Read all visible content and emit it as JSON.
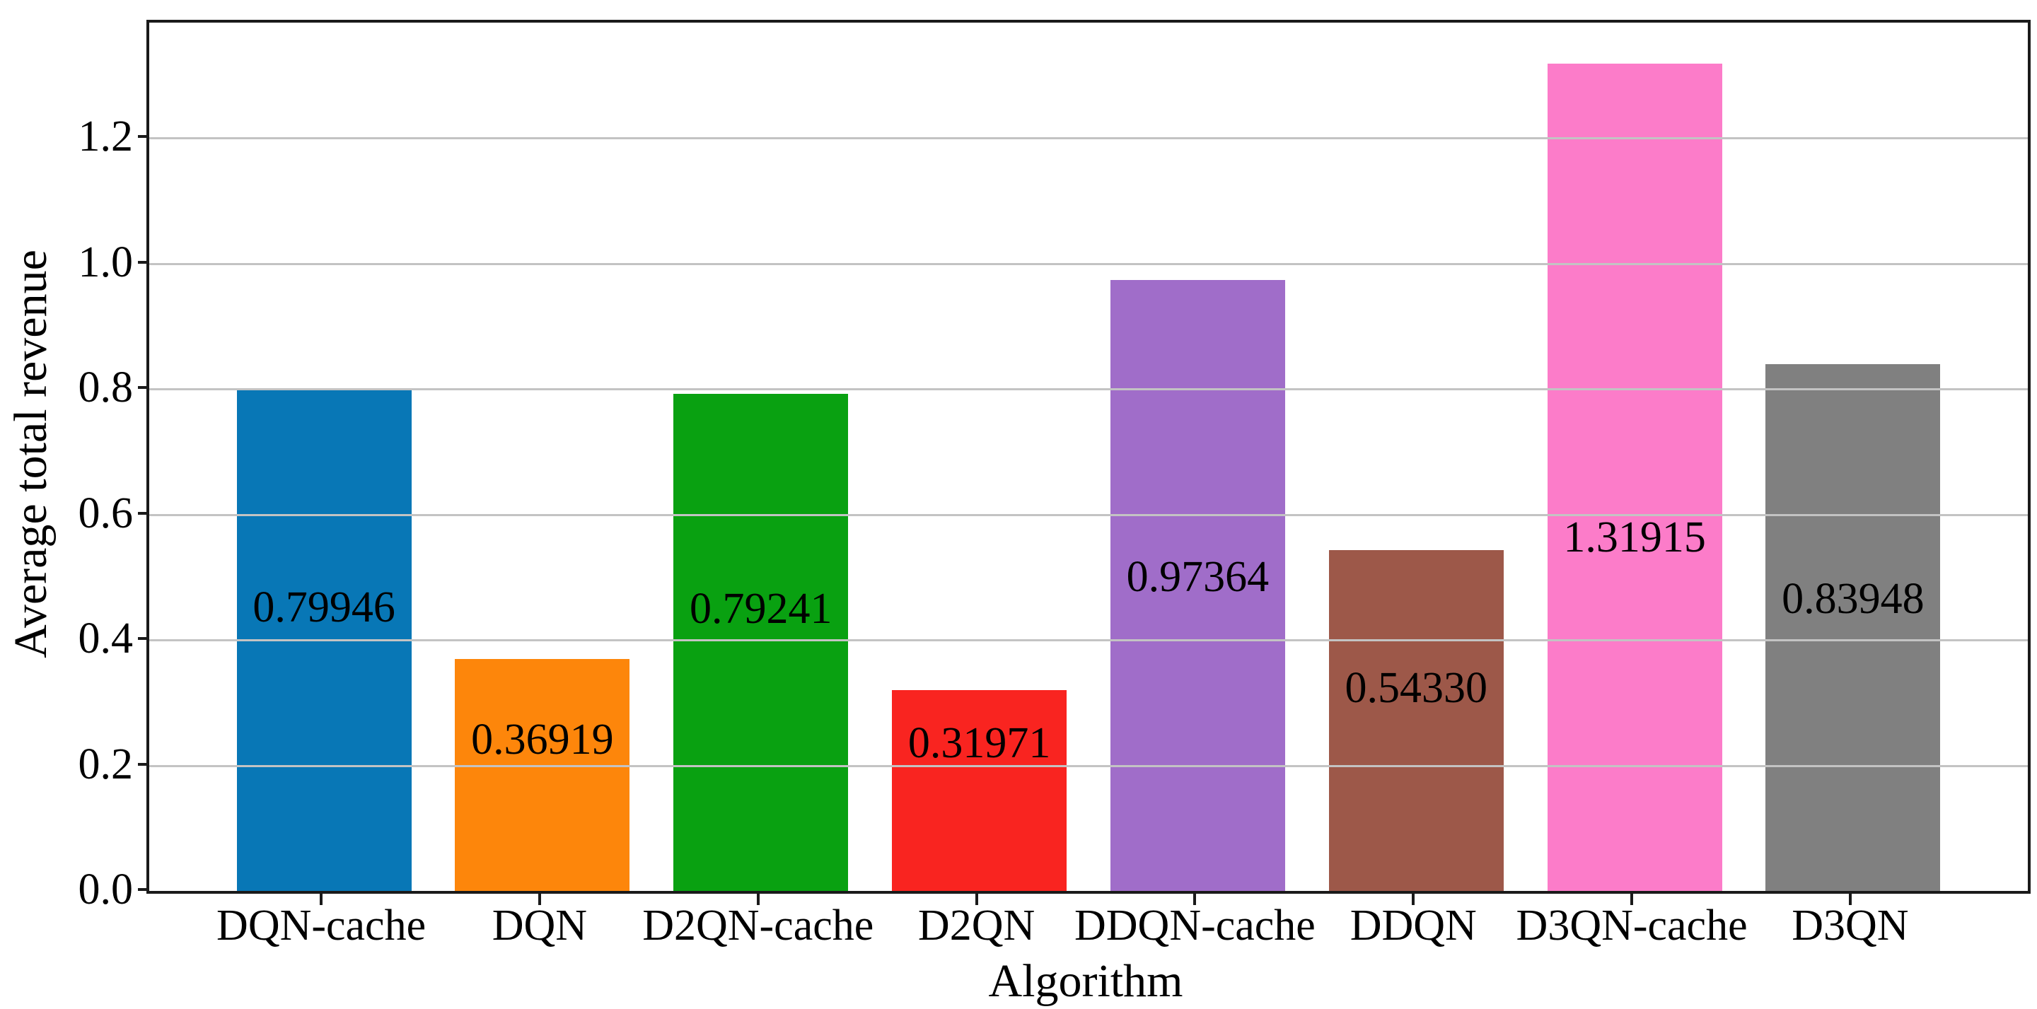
{
  "chart_data": {
    "type": "bar",
    "title": "",
    "xlabel": "Algorithm",
    "ylabel": "Average total revenue",
    "categories": [
      "DQN-cache",
      "DQN",
      "D2QN-cache",
      "D2QN",
      "DDQN-cache",
      "DDQN",
      "D3QN-cache",
      "D3QN"
    ],
    "values": [
      0.79946,
      0.36919,
      0.79241,
      0.31971,
      0.97364,
      0.5433,
      1.31915,
      0.83948
    ],
    "value_labels": [
      "0.79946",
      "0.36919",
      "0.79241",
      "0.31971",
      "0.97364",
      "0.54330",
      "1.31915",
      "0.83948"
    ],
    "bar_colors": [
      "#0877b6",
      "#fd860b",
      "#09a111",
      "#f92420",
      "#a06dc9",
      "#9d5849",
      "#fc7cc9",
      "#808080"
    ],
    "value_label_y_positions": [
      0.452,
      0.241,
      0.45,
      0.235,
      0.5,
      0.324,
      0.564,
      0.466
    ],
    "ylim": [
      0,
      1.384
    ],
    "yticks": [
      "0.0",
      "0.2",
      "0.4",
      "0.6",
      "0.8",
      "1.0",
      "1.2"
    ],
    "ytick_values": [
      0.0,
      0.2,
      0.4,
      0.6,
      0.8,
      1.0,
      1.2
    ],
    "grid": "horizontal",
    "gridline_color": "#c3c3c3",
    "spine_color": "#1a1a1a",
    "text_color": "#000000",
    "bar_width_fraction": 0.8,
    "legend": "none"
  }
}
